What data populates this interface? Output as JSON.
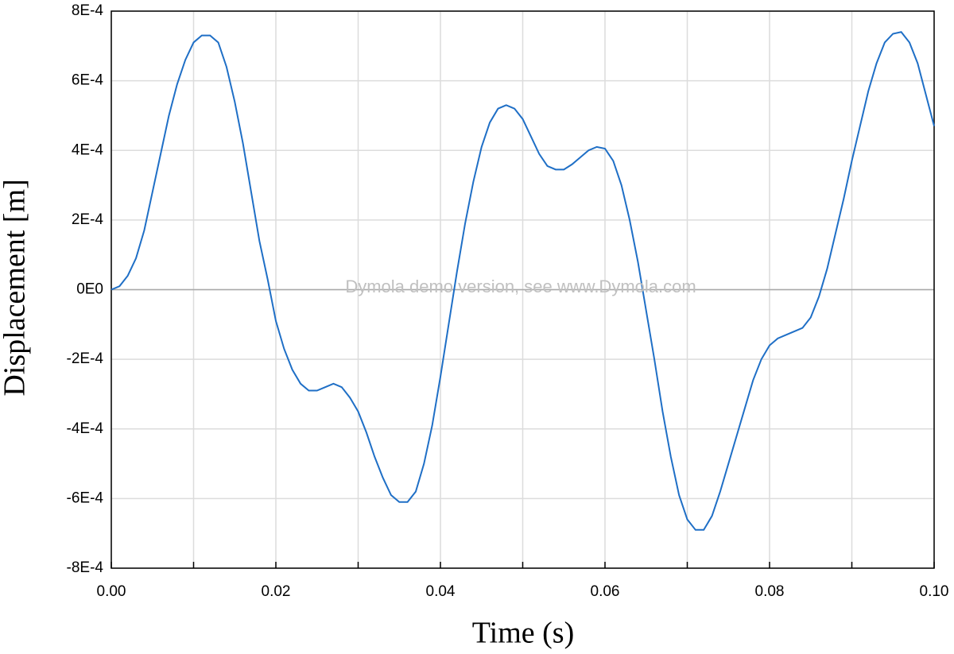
{
  "chart_data": {
    "type": "line",
    "x_label": "Time (s)",
    "y_label": "Displacement [m]",
    "annotation": "Dymola demo version, see www.Dymola.com",
    "xlim": [
      0,
      0.1
    ],
    "ylim": [
      -0.0008,
      0.0008
    ],
    "xticks": [
      {
        "value": 0,
        "label": "0.00"
      },
      0.02,
      0.04,
      0.06,
      0.08,
      {
        "value": 0.1,
        "label": "0.10"
      }
    ],
    "xminorticks": [
      0.01,
      0.03,
      0.05,
      0.07,
      0.09
    ],
    "yticks": [
      {
        "value": -0.0008,
        "label": "-8E-4"
      },
      {
        "value": -0.0006,
        "label": "-6E-4"
      },
      {
        "value": -0.0004,
        "label": "-4E-4"
      },
      {
        "value": -0.0002,
        "label": "-2E-4"
      },
      {
        "value": 0,
        "label": "0E0"
      },
      {
        "value": 0.0002,
        "label": "2E-4"
      },
      {
        "value": 0.0004,
        "label": "4E-4"
      },
      {
        "value": 0.0006,
        "label": "6E-4"
      },
      {
        "value": 0.0008,
        "label": "8E-4"
      }
    ],
    "grid": true,
    "x": [
      0,
      0.001,
      0.002,
      0.003,
      0.004,
      0.005,
      0.006,
      0.007,
      0.008,
      0.009,
      0.01,
      0.011,
      0.012,
      0.013,
      0.014,
      0.015,
      0.016,
      0.017,
      0.018,
      0.019,
      0.02,
      0.021,
      0.022,
      0.023,
      0.024,
      0.025,
      0.026,
      0.027,
      0.028,
      0.029,
      0.03,
      0.031,
      0.032,
      0.033,
      0.034,
      0.035,
      0.036,
      0.037,
      0.038,
      0.039,
      0.04,
      0.041,
      0.042,
      0.043,
      0.044,
      0.045,
      0.046,
      0.047,
      0.048,
      0.049,
      0.05,
      0.051,
      0.052,
      0.053,
      0.054,
      0.055,
      0.056,
      0.057,
      0.058,
      0.059,
      0.06,
      0.061,
      0.062,
      0.063,
      0.064,
      0.065,
      0.066,
      0.067,
      0.068,
      0.069,
      0.07,
      0.071,
      0.072,
      0.073,
      0.074,
      0.075,
      0.076,
      0.077,
      0.078,
      0.079,
      0.08,
      0.081,
      0.082,
      0.083,
      0.084,
      0.085,
      0.086,
      0.087,
      0.088,
      0.089,
      0.09,
      0.091,
      0.092,
      0.093,
      0.094,
      0.095,
      0.096,
      0.097,
      0.098,
      0.099,
      0.1
    ],
    "series": [
      {
        "color": "#1f6fc6",
        "values": [
          0,
          1e-05,
          4e-05,
          9e-05,
          0.00017,
          0.00028,
          0.00039,
          0.0005,
          0.00059,
          0.00066,
          0.00071,
          0.00073,
          0.00073,
          0.00071,
          0.00064,
          0.00054,
          0.00042,
          0.00028,
          0.00014,
          3e-05,
          -9e-05,
          -0.00017,
          -0.00023,
          -0.00027,
          -0.00029,
          -0.00029,
          -0.00028,
          -0.00027,
          -0.00028,
          -0.00031,
          -0.00035,
          -0.00041,
          -0.00048,
          -0.00054,
          -0.00059,
          -0.00061,
          -0.00061,
          -0.00058,
          -0.0005,
          -0.00039,
          -0.00025,
          -0.0001,
          5e-05,
          0.00019,
          0.00031,
          0.00041,
          0.00048,
          0.00052,
          0.00053,
          0.00052,
          0.00049,
          0.00044,
          0.00039,
          0.000355,
          0.000345,
          0.000345,
          0.00036,
          0.00038,
          0.0004,
          0.00041,
          0.000405,
          0.00037,
          0.0003,
          0.0002,
          8e-05,
          -6e-05,
          -0.0002,
          -0.00035,
          -0.00048,
          -0.00059,
          -0.00066,
          -0.00069,
          -0.00069,
          -0.00065,
          -0.00058,
          -0.0005,
          -0.00042,
          -0.00034,
          -0.00026,
          -0.0002,
          -0.00016,
          -0.00014,
          -0.00013,
          -0.00012,
          -0.00011,
          -8e-05,
          -2e-05,
          6e-05,
          0.00016,
          0.00026,
          0.00037,
          0.00047,
          0.00057,
          0.00065,
          0.00071,
          0.000735,
          0.00074,
          0.00071,
          0.00065,
          0.00056,
          0.00047
        ]
      }
    ]
  }
}
